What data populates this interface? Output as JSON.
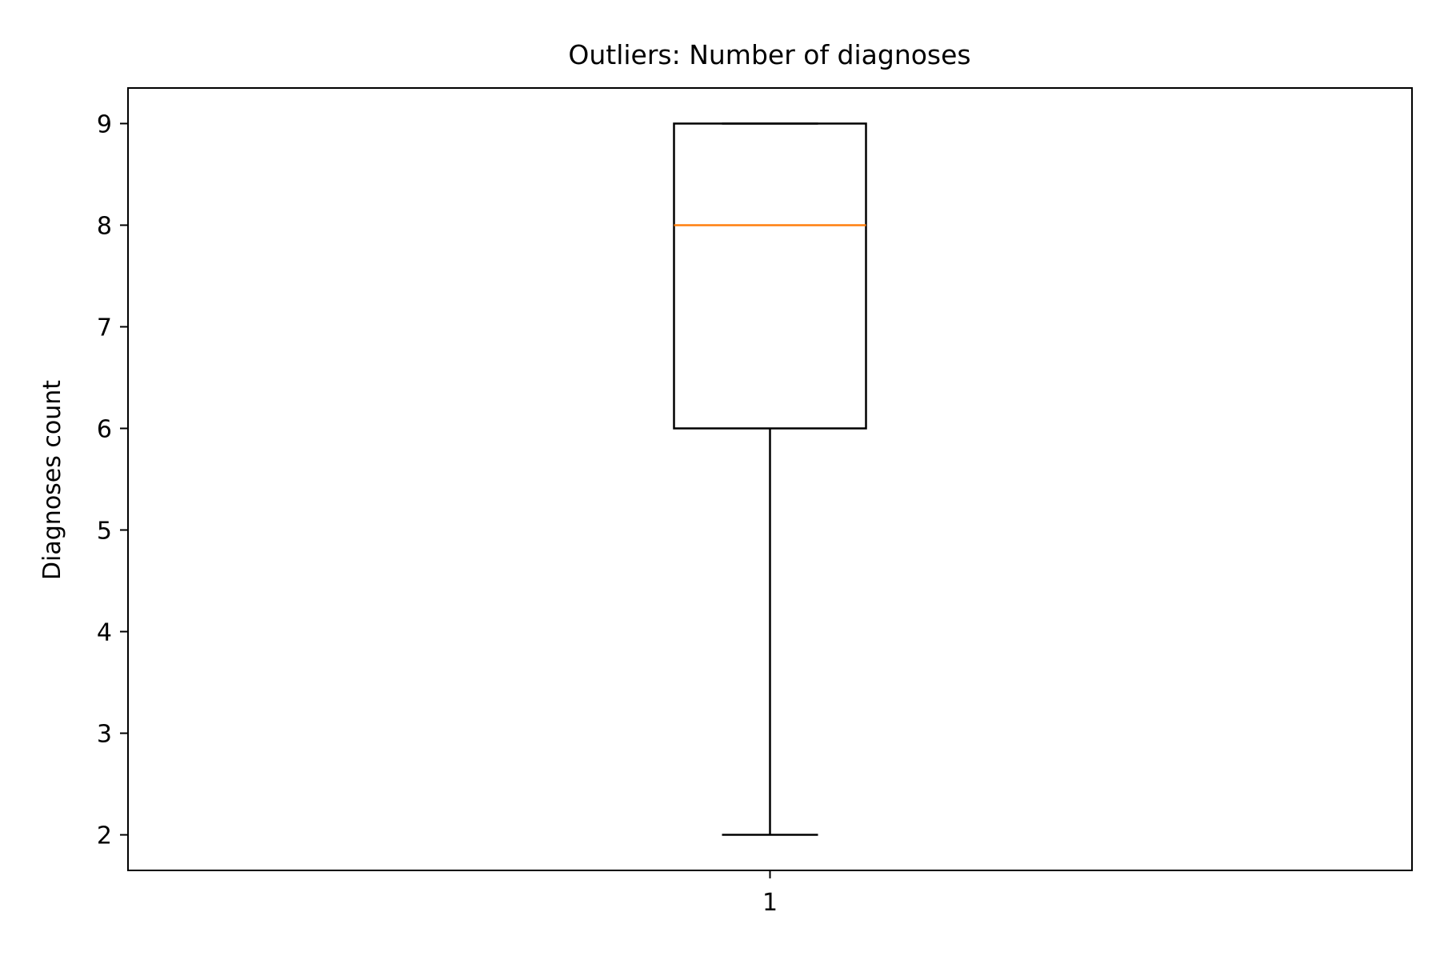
{
  "chart_data": {
    "type": "boxplot",
    "title": "Outliers: Number of diagnoses",
    "xlabel": "",
    "ylabel": "Diagnoses count",
    "ylim": [
      1.65,
      9.35
    ],
    "yticks": [
      2,
      3,
      4,
      5,
      6,
      7,
      8,
      9
    ],
    "categories": [
      "1"
    ],
    "boxes": [
      {
        "label": "1",
        "whisker_low": 2,
        "q1": 6,
        "median": 8,
        "q3": 9,
        "whisker_high": 9,
        "outliers": []
      }
    ],
    "grid": false,
    "colors": {
      "box": "#000000",
      "median": "#ff7f0e",
      "axes": "#000000"
    }
  }
}
